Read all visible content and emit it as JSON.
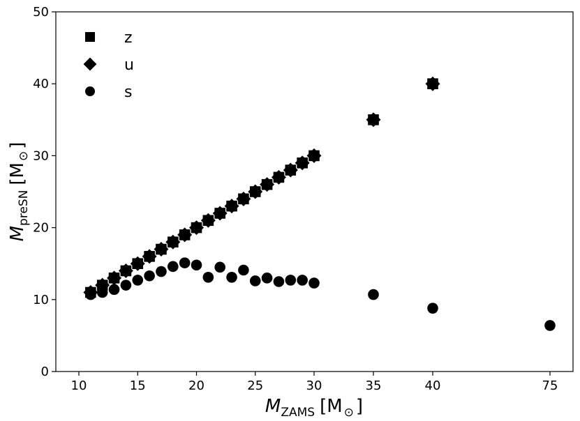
{
  "chart_data": {
    "type": "scatter",
    "title": "",
    "xlabel": {
      "main": "M",
      "sub": "ZAMS",
      "unit": "[M",
      "unit_sub": "⊙",
      "close": "]"
    },
    "ylabel": {
      "main": "M",
      "sub": "preSN",
      "unit": "[M",
      "unit_sub": "⊙",
      "close": "]"
    },
    "ylim": [
      0,
      50
    ],
    "x_scale": "broken-linear",
    "x_ticks": [
      10,
      15,
      20,
      25,
      30,
      35,
      40,
      75
    ],
    "y_ticks": [
      0,
      10,
      20,
      30,
      40,
      50
    ],
    "grid": false,
    "legend_position": "top-left",
    "series": [
      {
        "name": "z",
        "marker": "square",
        "color": "#000000",
        "points": [
          [
            11,
            11
          ],
          [
            12,
            12
          ],
          [
            13,
            13
          ],
          [
            14,
            14
          ],
          [
            15,
            15
          ],
          [
            16,
            16
          ],
          [
            17,
            17
          ],
          [
            18,
            18
          ],
          [
            19,
            19
          ],
          [
            20,
            20
          ],
          [
            21,
            21
          ],
          [
            22,
            22
          ],
          [
            23,
            23
          ],
          [
            24,
            24
          ],
          [
            25,
            25
          ],
          [
            26,
            26
          ],
          [
            27,
            27
          ],
          [
            28,
            28
          ],
          [
            29,
            29
          ],
          [
            30,
            30
          ],
          [
            35,
            35
          ],
          [
            40,
            40
          ]
        ]
      },
      {
        "name": "u",
        "marker": "diamond",
        "color": "#000000",
        "points": [
          [
            11,
            11
          ],
          [
            12,
            12
          ],
          [
            13,
            13
          ],
          [
            14,
            14
          ],
          [
            15,
            15
          ],
          [
            16,
            16
          ],
          [
            17,
            17
          ],
          [
            18,
            18
          ],
          [
            19,
            19
          ],
          [
            20,
            20
          ],
          [
            21,
            21
          ],
          [
            22,
            22
          ],
          [
            23,
            23
          ],
          [
            24,
            24
          ],
          [
            25,
            25
          ],
          [
            26,
            26
          ],
          [
            27,
            27
          ],
          [
            28,
            28
          ],
          [
            29,
            29
          ],
          [
            30,
            30
          ],
          [
            35,
            35
          ],
          [
            40,
            40
          ]
        ]
      },
      {
        "name": "s",
        "marker": "circle",
        "color": "#000000",
        "points": [
          [
            11,
            10.7
          ],
          [
            12,
            11.0
          ],
          [
            13,
            11.4
          ],
          [
            14,
            12.0
          ],
          [
            15,
            12.7
          ],
          [
            16,
            13.3
          ],
          [
            17,
            13.9
          ],
          [
            18,
            14.6
          ],
          [
            19,
            15.1
          ],
          [
            20,
            14.8
          ],
          [
            21,
            13.1
          ],
          [
            22,
            14.5
          ],
          [
            23,
            13.1
          ],
          [
            24,
            14.1
          ],
          [
            25,
            12.6
          ],
          [
            26,
            13.0
          ],
          [
            27,
            12.5
          ],
          [
            28,
            12.7
          ],
          [
            29,
            12.7
          ],
          [
            30,
            12.3
          ],
          [
            35,
            10.7
          ],
          [
            40,
            8.8
          ],
          [
            75,
            6.4
          ]
        ]
      }
    ]
  }
}
